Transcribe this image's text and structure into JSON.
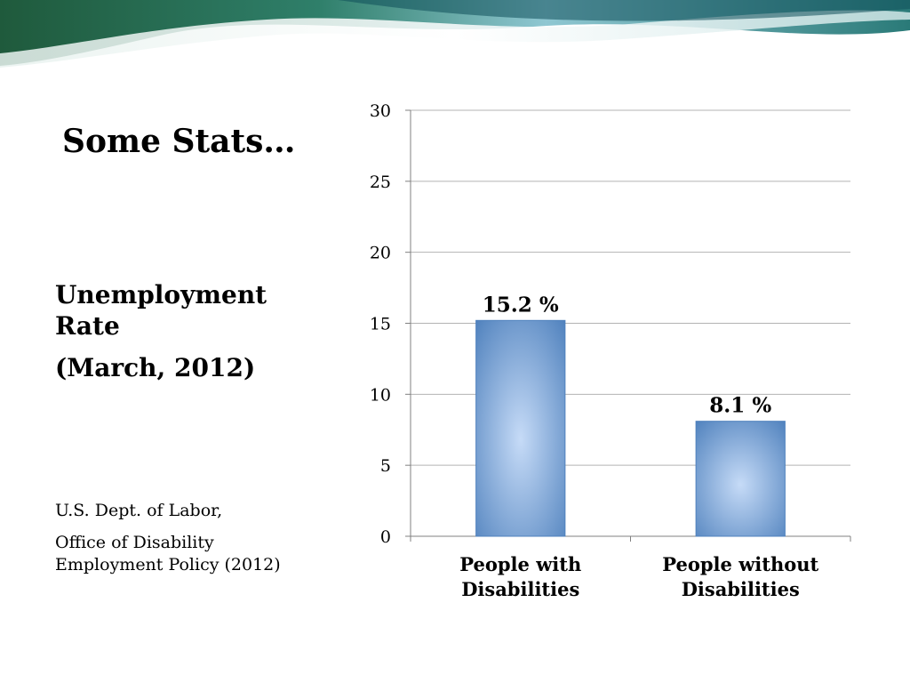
{
  "slide": {
    "title": "Some Stats…",
    "subtitle_line1": "Unemployment",
    "subtitle_line2": "Rate",
    "subtitle_line3": "(March, 2012)",
    "source_line1": "U.S. Dept. of Labor,",
    "source_line2": "Office of Disability",
    "source_line3": "Employment Policy (2012)"
  },
  "colors": {
    "bar": "#4f81bd",
    "bar_highlight": "#c6dbf7",
    "grid": "#b3b3b3",
    "axis": "#808080"
  },
  "chart_data": {
    "type": "bar",
    "categories": [
      [
        "People with",
        "Disabilities"
      ],
      [
        "People without",
        "Disabilities"
      ]
    ],
    "values": [
      15.2,
      8.1
    ],
    "data_labels": [
      "15.2 %",
      "8.1 %"
    ],
    "ylim": [
      0,
      30
    ],
    "yticks": [
      0,
      5,
      10,
      15,
      20,
      25,
      30
    ],
    "grid": true,
    "legend": "none"
  }
}
